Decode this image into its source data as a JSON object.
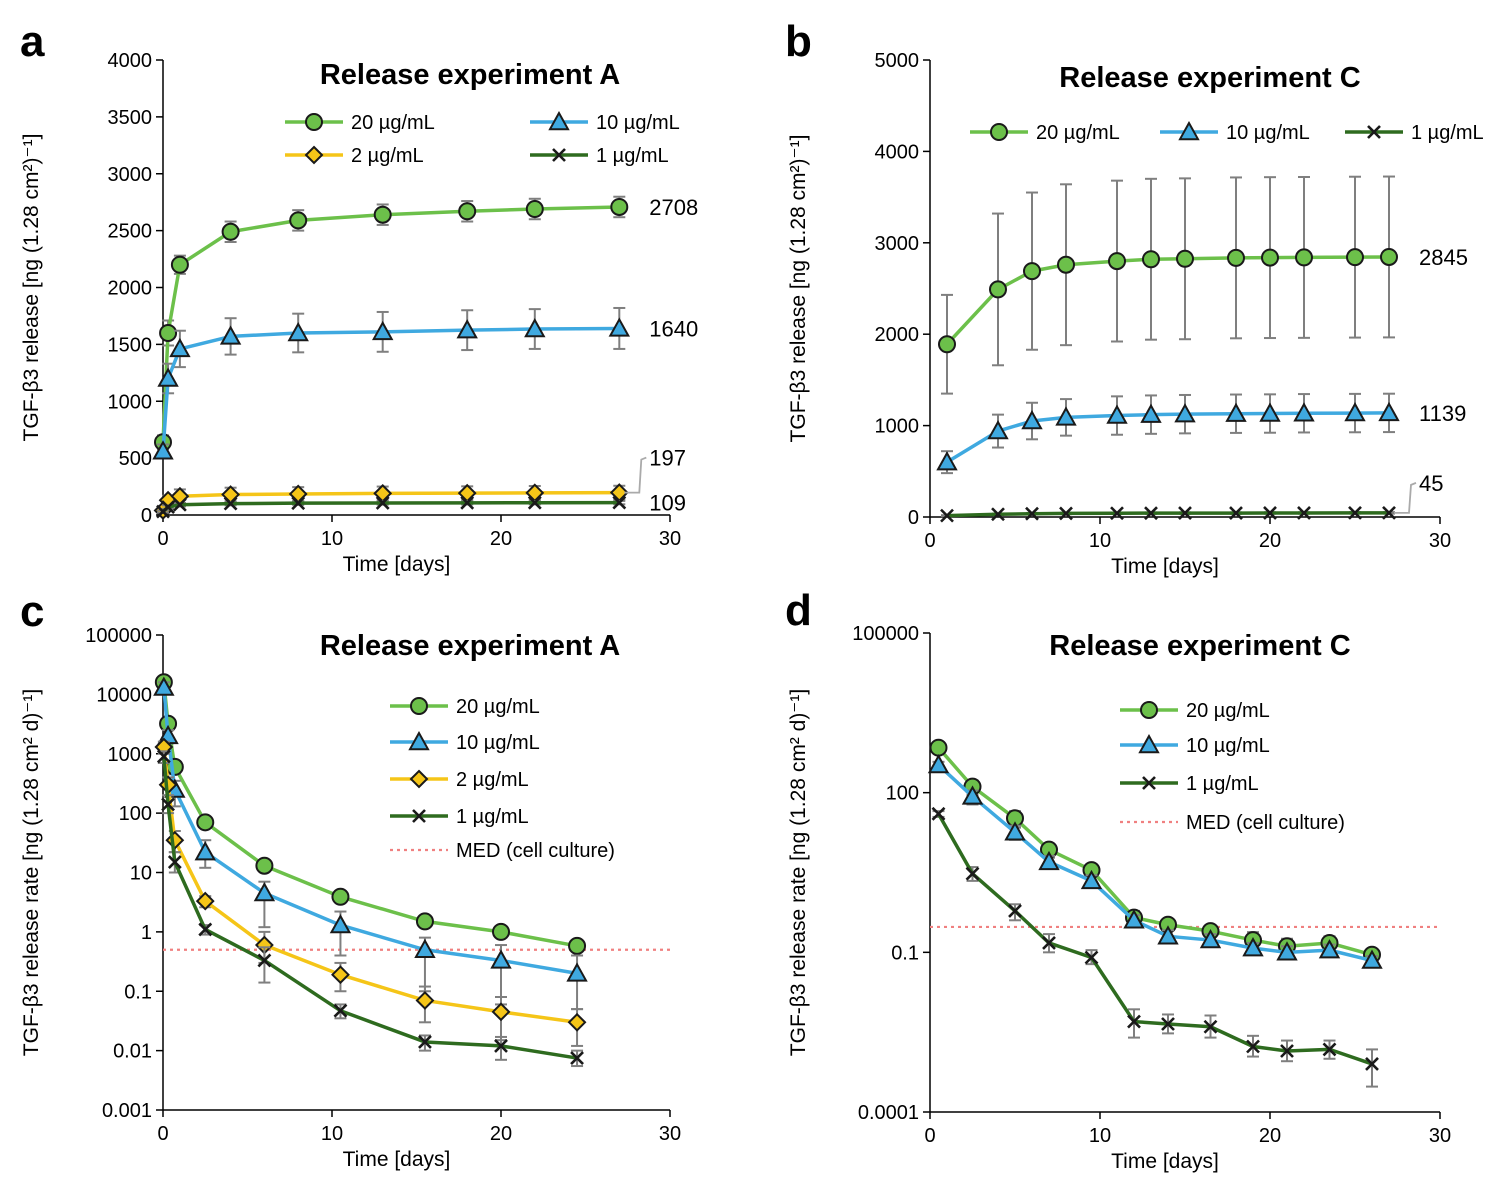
{
  "colors": {
    "c20": "#6cc04a",
    "c10": "#3fa9e0",
    "c2": "#f5c518",
    "c1": "#2e6b1f",
    "med": "#f08080",
    "err": "#7f7f7f"
  },
  "chart_data": [
    {
      "panel": "a",
      "type": "line",
      "scale": "linear",
      "title": "Release experiment A",
      "xlabel": "Time [days]",
      "ylabel": "TGF-β3 release [ng (1.28 cm²)⁻¹]",
      "xlim": [
        0,
        30
      ],
      "ylim": [
        0,
        4000
      ],
      "xticks": [
        0,
        10,
        20,
        30
      ],
      "yticks": [
        0,
        500,
        1000,
        1500,
        2000,
        2500,
        3000,
        3500,
        4000
      ],
      "ytick_labels": [
        "0",
        "500",
        "1000",
        "1500",
        "2000",
        "2500",
        "3000",
        "3500",
        "4000"
      ],
      "legend_position": "top",
      "series": [
        {
          "name": "20 µg/mL",
          "key": "c20",
          "marker": "circle",
          "x": [
            0,
            0.3,
            1,
            4,
            8,
            13,
            18,
            22,
            27
          ],
          "y": [
            640,
            1600,
            2200,
            2490,
            2590,
            2640,
            2670,
            2690,
            2708
          ],
          "err": [
            60,
            110,
            80,
            90,
            90,
            90,
            90,
            90,
            90
          ],
          "end_label": "2708"
        },
        {
          "name": "10 µg/mL",
          "key": "c10",
          "marker": "triangle",
          "x": [
            0,
            0.3,
            1,
            4,
            8,
            13,
            18,
            22,
            27
          ],
          "y": [
            560,
            1200,
            1460,
            1570,
            1600,
            1610,
            1625,
            1635,
            1640
          ],
          "err": [
            60,
            130,
            160,
            160,
            170,
            175,
            175,
            175,
            180
          ],
          "end_label": "1640"
        },
        {
          "name": "2 µg/mL",
          "key": "c2",
          "marker": "diamond",
          "x": [
            0,
            0.3,
            1,
            4,
            8,
            13,
            18,
            22,
            27
          ],
          "y": [
            40,
            130,
            165,
            180,
            185,
            190,
            192,
            195,
            197
          ],
          "err": [
            10,
            40,
            60,
            60,
            60,
            60,
            60,
            60,
            60
          ],
          "end_label": "197"
        },
        {
          "name": "1 µg/mL",
          "key": "c1",
          "marker": "x",
          "x": [
            0,
            0.3,
            1,
            4,
            8,
            13,
            18,
            22,
            27
          ],
          "y": [
            30,
            70,
            90,
            100,
            104,
            106,
            107,
            108,
            109
          ],
          "err": [
            10,
            15,
            15,
            15,
            15,
            15,
            15,
            15,
            15
          ],
          "end_label": "109"
        }
      ]
    },
    {
      "panel": "b",
      "type": "line",
      "scale": "linear",
      "title": "Release experiment C",
      "xlabel": "Time [days]",
      "ylabel": "TGF-β3 release [ng (1.28 cm²)⁻¹]",
      "xlim": [
        0,
        30
      ],
      "ylim": [
        0,
        5000
      ],
      "xticks": [
        0,
        10,
        20,
        30
      ],
      "yticks": [
        0,
        1000,
        2000,
        3000,
        4000,
        5000
      ],
      "ytick_labels": [
        "0",
        "1000",
        "2000",
        "3000",
        "4000",
        "5000"
      ],
      "legend_position": "top",
      "series": [
        {
          "name": "20 µg/mL",
          "key": "c20",
          "marker": "circle",
          "x": [
            1,
            4,
            6,
            8,
            11,
            13,
            15,
            18,
            20,
            22,
            25,
            27
          ],
          "y": [
            1890,
            2490,
            2690,
            2760,
            2800,
            2820,
            2825,
            2835,
            2838,
            2840,
            2843,
            2845
          ],
          "err": [
            540,
            830,
            860,
            880,
            880,
            880,
            880,
            880,
            880,
            880,
            880,
            880
          ],
          "end_label": "2845"
        },
        {
          "name": "10 µg/mL",
          "key": "c10",
          "marker": "triangle",
          "x": [
            1,
            4,
            6,
            8,
            11,
            13,
            15,
            18,
            20,
            22,
            25,
            27
          ],
          "y": [
            600,
            940,
            1050,
            1090,
            1110,
            1120,
            1125,
            1130,
            1132,
            1135,
            1137,
            1139
          ],
          "err": [
            120,
            180,
            200,
            200,
            210,
            210,
            210,
            210,
            210,
            210,
            210,
            210
          ],
          "end_label": "1139"
        },
        {
          "name": "1 µg/mL",
          "key": "c1",
          "marker": "x",
          "x": [
            1,
            4,
            6,
            8,
            11,
            13,
            15,
            18,
            20,
            22,
            25,
            27
          ],
          "y": [
            15,
            30,
            36,
            39,
            41,
            42,
            43,
            43,
            44,
            44,
            45,
            45
          ],
          "err": [
            5,
            8,
            8,
            8,
            8,
            8,
            8,
            8,
            8,
            8,
            8,
            8
          ],
          "end_label": "45"
        }
      ]
    },
    {
      "panel": "c",
      "type": "line",
      "scale": "log",
      "title": "Release experiment A",
      "xlabel": "Time [days]",
      "ylabel": "TGF-β3 release rate [ng (1.28 cm² d)⁻¹]",
      "xlim": [
        0,
        30
      ],
      "ylim": [
        0.001,
        100000
      ],
      "xticks": [
        0,
        10,
        20,
        30
      ],
      "yticks": [
        0.001,
        0.01,
        0.1,
        1,
        10,
        100,
        1000,
        10000,
        100000
      ],
      "ytick_labels": [
        "0.001",
        "0.01",
        "0.1",
        "1",
        "10",
        "100",
        "1000",
        "10000",
        "100000"
      ],
      "med": 0.5,
      "legend_position": "right",
      "series": [
        {
          "name": "20 µg/mL",
          "key": "c20",
          "marker": "circle",
          "x": [
            0.05,
            0.3,
            0.7,
            2.5,
            6,
            10.5,
            15.5,
            20,
            24.5
          ],
          "y": [
            16000,
            3200,
            600,
            70,
            13,
            3.9,
            1.5,
            1.0,
            0.58
          ],
          "lo": [
            13000,
            2500,
            450,
            60,
            11,
            3.3,
            1.2,
            0.85,
            0.5
          ],
          "hi": [
            18000,
            3800,
            750,
            80,
            15,
            4.5,
            1.8,
            1.2,
            0.68
          ]
        },
        {
          "name": "10 µg/mL",
          "key": "c10",
          "marker": "triangle",
          "x": [
            0.05,
            0.3,
            0.7,
            2.5,
            6,
            10.5,
            15.5,
            20,
            24.5
          ],
          "y": [
            13000,
            2000,
            250,
            22,
            4.5,
            1.3,
            0.5,
            0.33,
            0.2
          ],
          "lo": [
            10000,
            1500,
            130,
            12,
            1.2,
            0.4,
            0.1,
            0.06,
            0.05
          ],
          "hi": [
            16000,
            2500,
            350,
            35,
            7,
            2.2,
            0.8,
            0.6,
            0.4
          ]
        },
        {
          "name": "2 µg/mL",
          "key": "c2",
          "marker": "diamond",
          "x": [
            0.05,
            0.3,
            0.7,
            2.5,
            6,
            10.5,
            15.5,
            20,
            24.5
          ],
          "y": [
            1300,
            300,
            35,
            3.3,
            0.6,
            0.19,
            0.07,
            0.045,
            0.03
          ],
          "lo": [
            1000,
            200,
            22,
            2.6,
            0.3,
            0.1,
            0.03,
            0.015,
            0.012
          ],
          "hi": [
            1600,
            400,
            50,
            4,
            1.0,
            0.3,
            0.12,
            0.08,
            0.05
          ]
        },
        {
          "name": "1 µg/mL",
          "key": "c1",
          "marker": "x",
          "x": [
            0.05,
            0.3,
            0.7,
            2.5,
            6,
            10.5,
            15.5,
            20,
            24.5
          ],
          "y": [
            900,
            140,
            15,
            1.1,
            0.33,
            0.047,
            0.014,
            0.012,
            0.0075
          ],
          "lo": [
            700,
            100,
            10,
            0.9,
            0.14,
            0.035,
            0.01,
            0.007,
            0.0055
          ],
          "hi": [
            1100,
            200,
            22,
            1.3,
            0.55,
            0.06,
            0.018,
            0.017,
            0.01
          ]
        }
      ]
    },
    {
      "panel": "d",
      "type": "line",
      "scale": "log",
      "title": "Release experiment C",
      "xlabel": "Time [days]",
      "ylabel": "TGF-β3 release rate [ng (1.28 cm² d)⁻¹]",
      "xlim": [
        0,
        30
      ],
      "ylim": [
        0.0001,
        100000
      ],
      "xticks": [
        0,
        10,
        20,
        30
      ],
      "yticks": [
        0.0001,
        0.1,
        100,
        100000
      ],
      "ytick_labels": [
        "0.0001",
        "0.1",
        "100",
        "100000"
      ],
      "med": 0.3,
      "legend_position": "right",
      "series": [
        {
          "name": "20 µg/mL",
          "key": "c20",
          "marker": "circle",
          "x": [
            0.5,
            2.5,
            5,
            7,
            9.5,
            12,
            14,
            16.5,
            19,
            21,
            23.5,
            26
          ],
          "y": [
            700,
            130,
            33,
            8.5,
            3.5,
            0.45,
            0.33,
            0.25,
            0.17,
            0.13,
            0.15,
            0.09
          ],
          "lo": [
            620,
            90,
            22,
            6,
            2.8,
            0.35,
            0.26,
            0.2,
            0.12,
            0.1,
            0.11,
            0.075
          ],
          "hi": [
            780,
            170,
            45,
            11,
            4.5,
            0.6,
            0.42,
            0.32,
            0.24,
            0.18,
            0.2,
            0.11
          ]
        },
        {
          "name": "10 µg/mL",
          "key": "c10",
          "marker": "triangle",
          "x": [
            0.5,
            2.5,
            5,
            7,
            9.5,
            12,
            14,
            16.5,
            19,
            21,
            23.5,
            26
          ],
          "y": [
            330,
            85,
            18,
            5,
            2.2,
            0.4,
            0.2,
            0.17,
            0.12,
            0.1,
            0.11,
            0.07
          ],
          "lo": [
            280,
            60,
            13,
            3.8,
            1.7,
            0.3,
            0.15,
            0.13,
            0.09,
            0.08,
            0.09,
            0.06
          ],
          "hi": [
            380,
            110,
            24,
            6.5,
            2.8,
            0.5,
            0.26,
            0.22,
            0.15,
            0.13,
            0.14,
            0.085
          ]
        },
        {
          "name": "1 µg/mL",
          "key": "c1",
          "marker": "x",
          "x": [
            0.5,
            2.5,
            5,
            7,
            9.5,
            12,
            14,
            16.5,
            19,
            21,
            23.5,
            26
          ],
          "y": [
            40,
            3,
            0.6,
            0.15,
            0.08,
            0.005,
            0.0045,
            0.004,
            0.0017,
            0.0014,
            0.0015,
            0.0008
          ],
          "lo": [
            35,
            2.2,
            0.4,
            0.1,
            0.06,
            0.0025,
            0.003,
            0.0025,
            0.0011,
            0.0009,
            0.001,
            0.0003
          ],
          "hi": [
            45,
            4,
            0.8,
            0.22,
            0.11,
            0.0085,
            0.0068,
            0.0065,
            0.0027,
            0.0022,
            0.0022,
            0.0015
          ]
        }
      ]
    }
  ],
  "panel_letters": [
    "a",
    "b",
    "c",
    "d"
  ],
  "med_label": "MED (cell culture)"
}
